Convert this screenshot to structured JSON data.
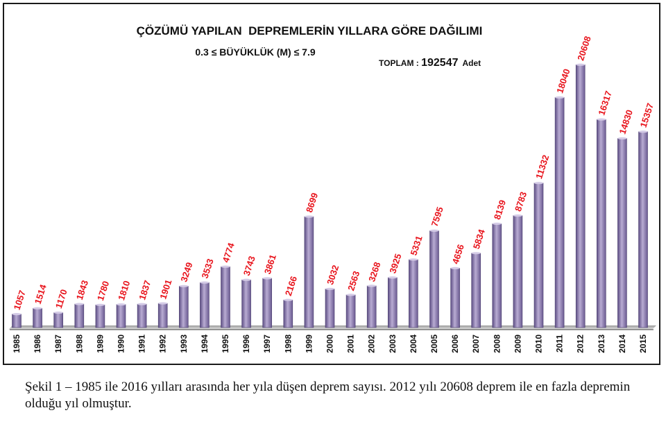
{
  "chart_data": {
    "type": "bar",
    "title": "ÇÖZÜMÜ YAPILAN  DEPREMLERİN YILLARA GÖRE DAĞILIMI",
    "subtitle": "0.3 ≤ BÜYÜKLÜK (M) ≤ 7.9",
    "total_label": "TOPLAM : ",
    "total_value": "192547",
    "total_unit": "Adet",
    "categories": [
      "1985",
      "1986",
      "1987",
      "1988",
      "1989",
      "1990",
      "1991",
      "1992",
      "1993",
      "1994",
      "1995",
      "1996",
      "1997",
      "1998",
      "1999",
      "2000",
      "2001",
      "2002",
      "2003",
      "2004",
      "2005",
      "2006",
      "2007",
      "2008",
      "2009",
      "2010",
      "2011",
      "2012",
      "2013",
      "2014",
      "2015"
    ],
    "values": [
      1057,
      1514,
      1170,
      1843,
      1780,
      1810,
      1837,
      1901,
      3249,
      3533,
      4774,
      3743,
      3861,
      2166,
      8699,
      3032,
      2563,
      3268,
      3925,
      5331,
      7595,
      4656,
      5834,
      8139,
      8783,
      11332,
      18040,
      20608,
      16317,
      14830,
      15357
    ],
    "ylim": [
      0,
      21000
    ],
    "grid": false,
    "colors": {
      "bar_top": "#b3a5cc",
      "bar_bottom": "#6f5f95",
      "value_label": "#e8141c",
      "axis": "#3a3a3a"
    }
  },
  "caption": "Şekil 1 – 1985 ile 2016 yılları arasında her yıla düşen deprem sayısı. 2012 yılı 20608 deprem ile en fazla depremin olduğu yıl olmuştur."
}
